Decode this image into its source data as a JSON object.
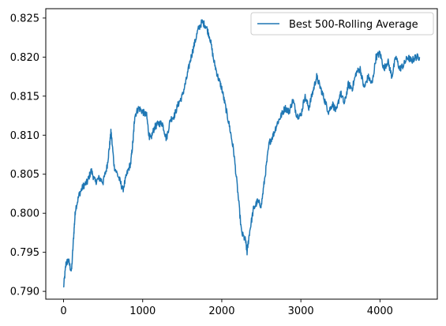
{
  "chart_data": {
    "type": "line",
    "title": "",
    "xlabel": "",
    "ylabel": "",
    "xlim": [
      -225,
      4725
    ],
    "ylim": [
      0.789,
      0.8262
    ],
    "xticks": [
      0,
      1000,
      2000,
      3000,
      4000
    ],
    "xtick_labels": [
      "0",
      "1000",
      "2000",
      "3000",
      "4000"
    ],
    "yticks": [
      0.79,
      0.795,
      0.8,
      0.805,
      0.81,
      0.815,
      0.82,
      0.825
    ],
    "ytick_labels": [
      "0.790",
      "0.795",
      "0.800",
      "0.805",
      "0.810",
      "0.815",
      "0.820",
      "0.825"
    ],
    "grid": false,
    "legend": {
      "placement": "top-right"
    },
    "series": [
      {
        "name": "Best 500-Rolling Average",
        "color": "#1f77b4",
        "x": [
          0,
          30,
          60,
          100,
          130,
          150,
          200,
          250,
          300,
          350,
          400,
          450,
          500,
          550,
          580,
          600,
          640,
          700,
          750,
          800,
          850,
          880,
          900,
          950,
          1000,
          1050,
          1080,
          1100,
          1150,
          1200,
          1250,
          1300,
          1350,
          1400,
          1450,
          1500,
          1550,
          1600,
          1650,
          1700,
          1750,
          1800,
          1850,
          1900,
          1950,
          2000,
          2050,
          2100,
          2150,
          2200,
          2250,
          2300,
          2320,
          2350,
          2400,
          2450,
          2500,
          2550,
          2600,
          2650,
          2700,
          2750,
          2800,
          2850,
          2900,
          2950,
          3000,
          3050,
          3100,
          3150,
          3200,
          3250,
          3300,
          3350,
          3400,
          3450,
          3500,
          3550,
          3600,
          3650,
          3700,
          3750,
          3800,
          3850,
          3900,
          3950,
          4000,
          4050,
          4100,
          4150,
          4200,
          4250,
          4300,
          4350,
          4400,
          4450,
          4500
        ],
        "y": [
          0.7905,
          0.7935,
          0.794,
          0.7925,
          0.7975,
          0.8005,
          0.8025,
          0.8035,
          0.804,
          0.8055,
          0.804,
          0.8045,
          0.804,
          0.806,
          0.8085,
          0.8105,
          0.806,
          0.8045,
          0.803,
          0.805,
          0.8065,
          0.8095,
          0.8125,
          0.8135,
          0.813,
          0.8125,
          0.81,
          0.8095,
          0.811,
          0.8115,
          0.8115,
          0.8095,
          0.812,
          0.8125,
          0.814,
          0.815,
          0.817,
          0.8195,
          0.8215,
          0.8235,
          0.8245,
          0.824,
          0.8225,
          0.8195,
          0.8175,
          0.816,
          0.8135,
          0.811,
          0.808,
          0.803,
          0.7975,
          0.7965,
          0.795,
          0.7975,
          0.8005,
          0.8015,
          0.801,
          0.805,
          0.809,
          0.81,
          0.8115,
          0.8125,
          0.8135,
          0.813,
          0.8145,
          0.8125,
          0.8125,
          0.815,
          0.8135,
          0.8155,
          0.8175,
          0.816,
          0.8145,
          0.813,
          0.814,
          0.813,
          0.8155,
          0.814,
          0.8165,
          0.816,
          0.818,
          0.8185,
          0.816,
          0.8175,
          0.8165,
          0.82,
          0.8205,
          0.8185,
          0.8195,
          0.8175,
          0.82,
          0.8185,
          0.819,
          0.82,
          0.8195,
          0.82,
          0.82
        ]
      }
    ]
  }
}
